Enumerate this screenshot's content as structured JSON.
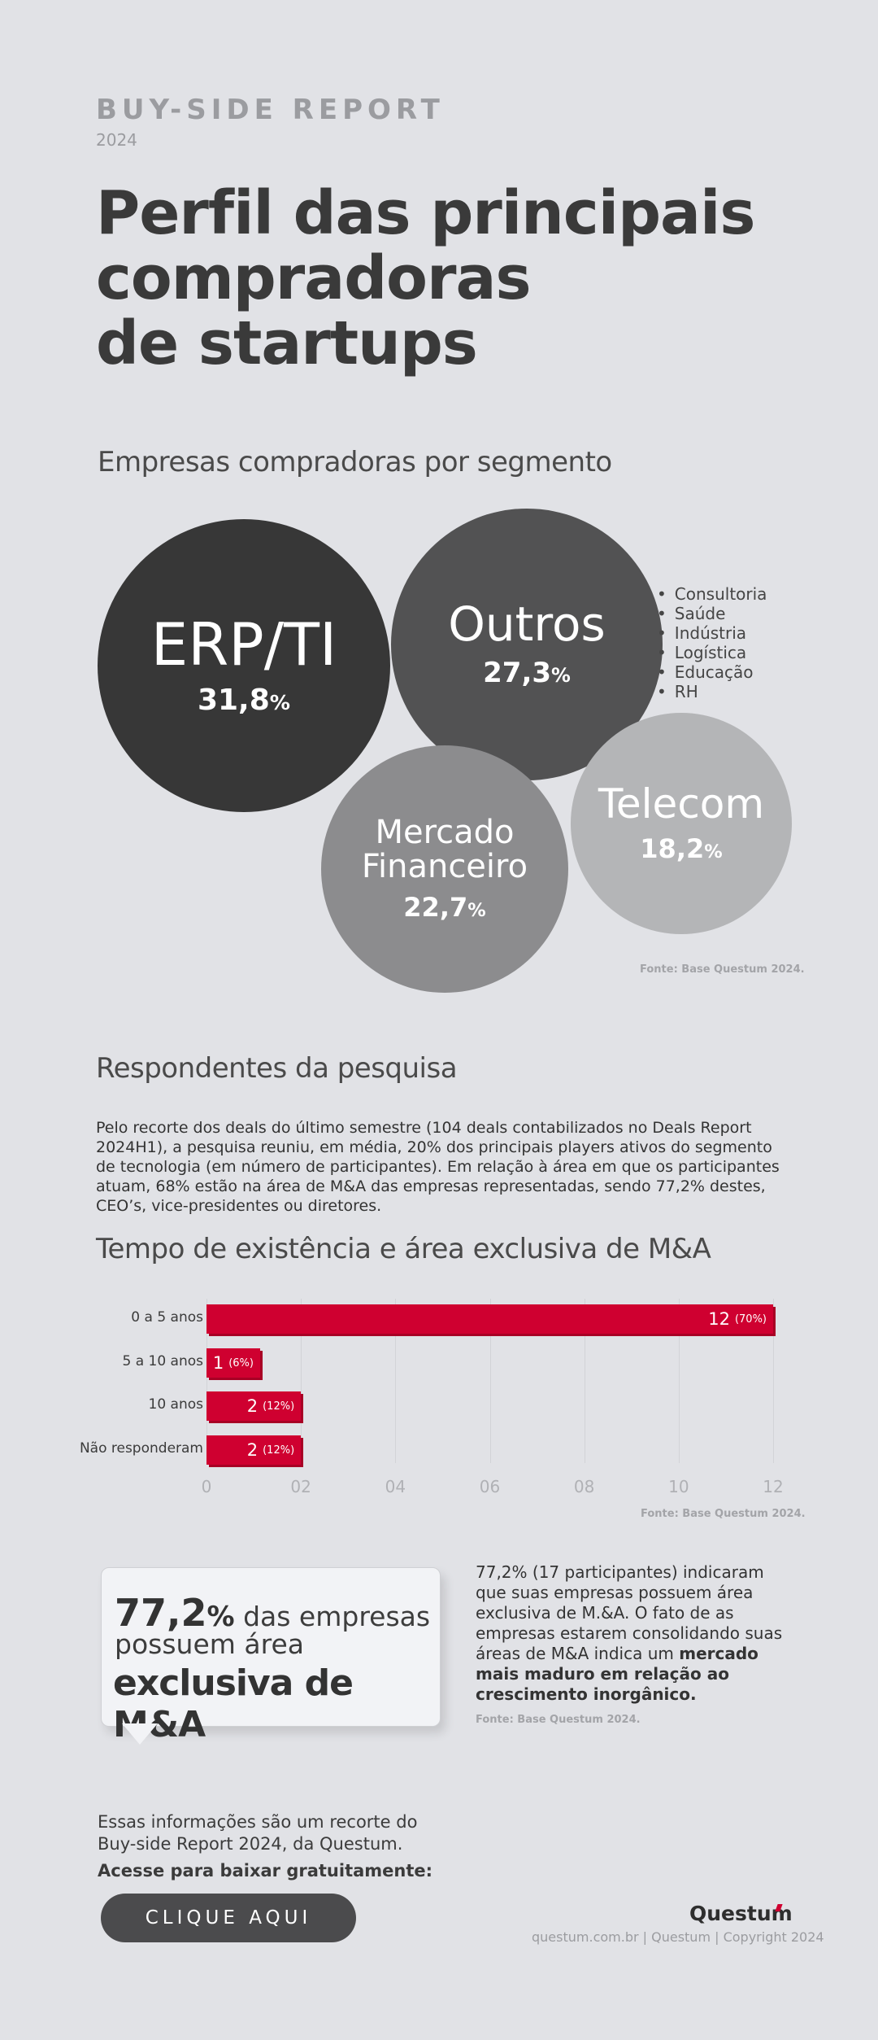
{
  "header": {
    "report_label": "BUY-SIDE REPORT",
    "year": "2024",
    "title_line1": "Perfil das principais",
    "title_line2": "compradoras",
    "title_line3": "de startups"
  },
  "segments": {
    "heading": "Empresas compradoras por segmento",
    "source": "Fonte: Base Questum 2024.",
    "outros_list": [
      "Consultoria",
      "Saúde",
      "Indústria",
      "Logística",
      "Educação",
      "RH"
    ]
  },
  "respondents": {
    "heading": "Respondentes da pesquisa",
    "paragraph": "Pelo recorte dos deals do último semestre (104 deals contabilizados no Deals Report 2024H1), a pesquisa reuniu, em média, 20% dos principais players ativos do segmento de tecnologia (em número de participantes). Em relação à área em que os participantes atuam, 68% estão na área de M&A das empresas representadas, sendo 77,2% destes, CEO’s, vice-presidentes ou diretores."
  },
  "tempo": {
    "heading": "Tempo de existência e área exclusiva de M&A",
    "source": "Fonte: Base Questum 2024."
  },
  "chart_data": [
    {
      "type": "bubble",
      "title": "Empresas compradoras por segmento",
      "categories": [
        "ERP/TI",
        "Outros",
        "Mercado Financeiro",
        "Telecom"
      ],
      "values": [
        31.8,
        27.3,
        22.7,
        18.2
      ],
      "labels": [
        "31,8",
        "27,3",
        "22,7",
        "18,2"
      ],
      "unit": "%",
      "colors": [
        "#373737",
        "#525253",
        "#8c8c8e",
        "#b4b5b7"
      ]
    },
    {
      "type": "bar",
      "orientation": "horizontal",
      "title": "Tempo de existência e área exclusiva de M&A",
      "categories": [
        "0 a 5 anos",
        "5 a 10 anos",
        "10 anos",
        "Não responderam"
      ],
      "values": [
        12,
        1,
        2,
        2
      ],
      "value_labels": [
        "12",
        "1",
        "2",
        "2"
      ],
      "percent_labels": [
        "(70%)",
        "(6%)",
        "(12%)",
        "(12%)"
      ],
      "xlim": [
        0,
        12
      ],
      "xticks": [
        "0",
        "02",
        "04",
        "06",
        "08",
        "10",
        "12"
      ],
      "grid": true,
      "color": "#cf0030"
    }
  ],
  "callout": {
    "big": "77,2",
    "pct": "%",
    "line1": " das empresas",
    "line2": "possuem área",
    "line3": "exclusiva de M&A"
  },
  "insight": {
    "text_plain": "77,2% (17 participantes) indicaram que suas empresas possuem área exclusiva de M.&A. O fato de as empresas estarem consolidando suas áreas de M&A indica um ",
    "text_bold": "mercado mais maduro em relação ao crescimento inorgânico.",
    "source": "Fonte: Base Questum 2024."
  },
  "footer": {
    "line1": "Essas informações são um recorte do",
    "line2": "Buy-side Report 2024, da Questum.",
    "line3": "Acesse para baixar gratuitamente:",
    "cta_label": "CLIQUE AQUI",
    "brand": "Questum",
    "copyright": "questum.com.br | Questum | Copyright 2024"
  }
}
